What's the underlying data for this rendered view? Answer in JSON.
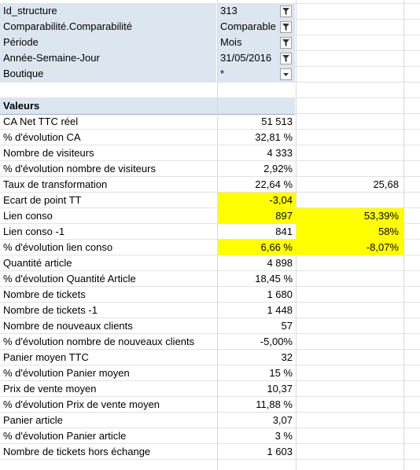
{
  "page_fields": [
    {
      "label": "Id_structure",
      "value": "313",
      "button": "filter"
    },
    {
      "label": "Comparabilité.Comparabilité",
      "value": "Comparable",
      "button": "filter"
    },
    {
      "label": "Période",
      "value": "Mois",
      "button": "filter"
    },
    {
      "label": "Année-Semaine-Jour",
      "value": "31/05/2016",
      "button": "filter"
    },
    {
      "label": "Boutique",
      "value": "*",
      "button": "dropdown"
    }
  ],
  "values_header": "Valeurs",
  "rows": [
    {
      "label": "CA Net TTC réel",
      "value": "51 513",
      "extra": ""
    },
    {
      "label": "% d'évolution CA",
      "value": "32,81 %",
      "extra": ""
    },
    {
      "label": "Nombre de visiteurs",
      "value": "4 333",
      "extra": ""
    },
    {
      "label": "% d'évolution nombre de visiteurs",
      "value": "2,92%",
      "extra": ""
    },
    {
      "label": "Taux de transformation",
      "value": "22,64 %",
      "extra": "25,68"
    },
    {
      "label": "Ecart de point TT",
      "value": "-3,04",
      "extra": ""
    },
    {
      "label": "Lien conso",
      "value": "897",
      "extra": "53,39%"
    },
    {
      "label": "Lien conso -1",
      "value": "841",
      "extra": "58%"
    },
    {
      "label": "% d'évolution lien conso",
      "value": "6,66 %",
      "extra": "-8,07%"
    },
    {
      "label": "Quantité article",
      "value": "4 898",
      "extra": ""
    },
    {
      "label": "% d'évolution Quantité Article",
      "value": "18,45 %",
      "extra": ""
    },
    {
      "label": "Nombre de tickets",
      "value": "1 680",
      "extra": ""
    },
    {
      "label": "Nombre de tickets -1",
      "value": "1 448",
      "extra": ""
    },
    {
      "label": "Nombre de nouveaux clients",
      "value": "57",
      "extra": ""
    },
    {
      "label": "% d'évolution nombre de nouveaux clients",
      "value": "-5,00%",
      "extra": ""
    },
    {
      "label": "Panier moyen TTC",
      "value": "32",
      "extra": ""
    },
    {
      "label": "% d'évolution Panier moyen",
      "value": "15 %",
      "extra": ""
    },
    {
      "label": "Prix de vente moyen",
      "value": "10,37",
      "extra": ""
    },
    {
      "label": "% d'évolution Prix de vente moyen",
      "value": "11,88 %",
      "extra": ""
    },
    {
      "label": "Panier article",
      "value": "3,07",
      "extra": ""
    },
    {
      "label": "% d'évolution Panier article",
      "value": "3 %",
      "extra": ""
    },
    {
      "label": "Nombre de tickets hors échange",
      "value": "1 603",
      "extra": ""
    }
  ],
  "colors": {
    "highlight": "#ffff00",
    "pivot_header": "#dce6f1"
  }
}
